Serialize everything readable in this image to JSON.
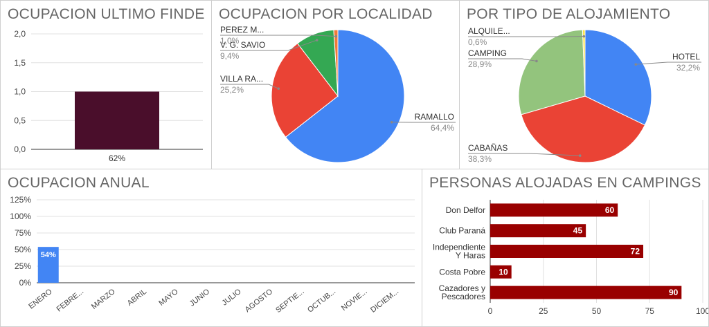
{
  "colors": {
    "bar_dark": "#4a0e2b",
    "blue": "#4285f4",
    "red": "#ea4335",
    "green": "#34a853",
    "light_green": "#93c47d",
    "orange": "#f0793a",
    "yellow": "#fbe34a",
    "dark_red": "#990000"
  },
  "chart_data": [
    {
      "type": "bar",
      "title": "OCUPACION ULTIMO FINDE",
      "categories": [
        "62%"
      ],
      "values": [
        1
      ],
      "ylim": [
        0,
        2
      ],
      "yticks": [
        "0,0",
        "0,5",
        "1,0",
        "1,5",
        "2,0"
      ],
      "ytick_values": [
        0,
        0.5,
        1,
        1.5,
        2
      ],
      "xlabel": "",
      "ylabel": ""
    },
    {
      "type": "pie",
      "title": "OCUPACION POR LOCALIDAD",
      "slices": [
        {
          "label": "RAMALLO",
          "pct_label": "64,4%",
          "value": 64.4,
          "color": "#4285f4"
        },
        {
          "label": "VILLA RA...",
          "pct_label": "25,2%",
          "value": 25.2,
          "color": "#ea4335"
        },
        {
          "label": "V. G. SAVIO",
          "pct_label": "9,4%",
          "value": 9.4,
          "color": "#34a853"
        },
        {
          "label": "PEREZ M...",
          "pct_label": "1,0%",
          "value": 1.0,
          "color": "#f0793a"
        }
      ]
    },
    {
      "type": "pie",
      "title": "POR TIPO DE ALOJAMIENTO",
      "slices": [
        {
          "label": "HOTEL",
          "pct_label": "32,2%",
          "value": 32.2,
          "color": "#4285f4"
        },
        {
          "label": "CABAÑAS",
          "pct_label": "38,3%",
          "value": 38.3,
          "color": "#ea4335"
        },
        {
          "label": "CAMPING",
          "pct_label": "28,9%",
          "value": 28.9,
          "color": "#93c47d"
        },
        {
          "label": "ALQUILE...",
          "pct_label": "0,6%",
          "value": 0.6,
          "color": "#fbe34a"
        }
      ]
    },
    {
      "type": "bar",
      "title": "OCUPACION ANUAL",
      "categories": [
        "ENERO",
        "FEBRE...",
        "MARZO",
        "ABRIL",
        "MAYO",
        "JUNIO",
        "JULIO",
        "AGOSTO",
        "SEPTIE...",
        "OCTUB...",
        "NOVIE...",
        "DICIEM..."
      ],
      "values": [
        54,
        0,
        0,
        0,
        0,
        0,
        0,
        0,
        0,
        0,
        0,
        0
      ],
      "data_labels": [
        "54%",
        "",
        "",
        "",
        "",
        "",
        "",
        "",
        "",
        "",
        "",
        ""
      ],
      "ylim": [
        0,
        125
      ],
      "yticks": [
        "0%",
        "25%",
        "50%",
        "75%",
        "100%",
        "125%"
      ],
      "ytick_values": [
        0,
        25,
        50,
        75,
        100,
        125
      ],
      "xlabel": "",
      "ylabel": ""
    },
    {
      "type": "bar",
      "orientation": "horizontal",
      "title": "PERSONAS ALOJADAS EN CAMPINGS",
      "categories": [
        [
          "Don Delfor"
        ],
        [
          "Club Paraná"
        ],
        [
          "Independiente",
          "Y Haras"
        ],
        [
          "Costa Pobre"
        ],
        [
          "Cazadores y",
          "Pescadores"
        ]
      ],
      "values": [
        60,
        45,
        72,
        10,
        90
      ],
      "xlim": [
        0,
        100
      ],
      "xticks": [
        "0",
        "25",
        "50",
        "75",
        "100"
      ],
      "xtick_values": [
        0,
        25,
        50,
        75,
        100
      ],
      "xlabel": "",
      "ylabel": ""
    }
  ]
}
